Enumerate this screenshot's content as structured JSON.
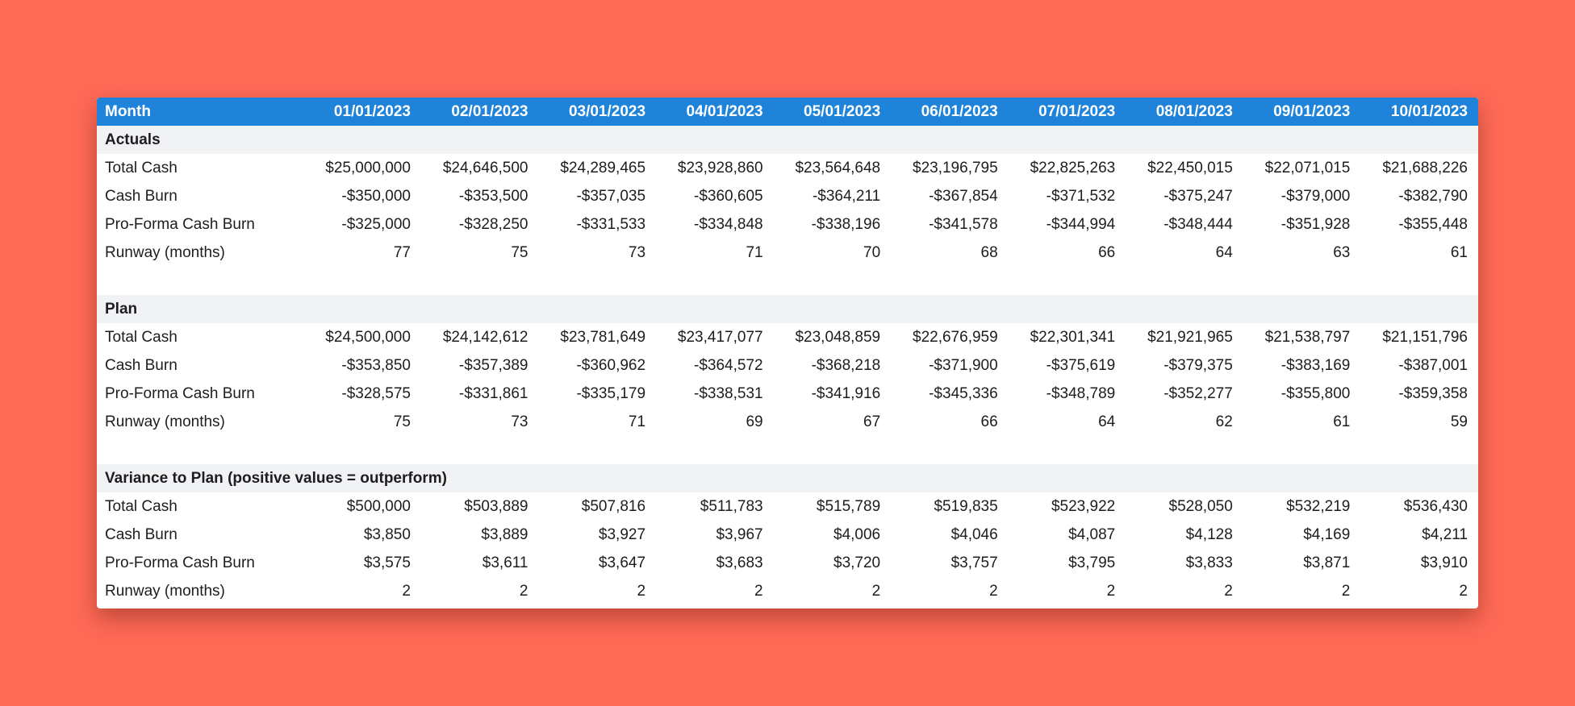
{
  "table": {
    "header": [
      "Month",
      "01/01/2023",
      "02/01/2023",
      "03/01/2023",
      "04/01/2023",
      "05/01/2023",
      "06/01/2023",
      "07/01/2023",
      "08/01/2023",
      "09/01/2023",
      "10/01/2023"
    ],
    "sections": [
      {
        "title": "Actuals",
        "rows": [
          {
            "label": "Total Cash",
            "values": [
              "$25,000,000",
              "$24,646,500",
              "$24,289,465",
              "$23,928,860",
              "$23,564,648",
              "$23,196,795",
              "$22,825,263",
              "$22,450,015",
              "$22,071,015",
              "$21,688,226"
            ]
          },
          {
            "label": "Cash Burn",
            "values": [
              "-$350,000",
              "-$353,500",
              "-$357,035",
              "-$360,605",
              "-$364,211",
              "-$367,854",
              "-$371,532",
              "-$375,247",
              "-$379,000",
              "-$382,790"
            ]
          },
          {
            "label": "Pro-Forma Cash Burn",
            "values": [
              "-$325,000",
              "-$328,250",
              "-$331,533",
              "-$334,848",
              "-$338,196",
              "-$341,578",
              "-$344,994",
              "-$348,444",
              "-$351,928",
              "-$355,448"
            ]
          },
          {
            "label": "Runway (months)",
            "values": [
              "77",
              "75",
              "73",
              "71",
              "70",
              "68",
              "66",
              "64",
              "63",
              "61"
            ]
          }
        ]
      },
      {
        "title": "Plan",
        "rows": [
          {
            "label": "Total Cash",
            "values": [
              "$24,500,000",
              "$24,142,612",
              "$23,781,649",
              "$23,417,077",
              "$23,048,859",
              "$22,676,959",
              "$22,301,341",
              "$21,921,965",
              "$21,538,797",
              "$21,151,796"
            ]
          },
          {
            "label": "Cash Burn",
            "values": [
              "-$353,850",
              "-$357,389",
              "-$360,962",
              "-$364,572",
              "-$368,218",
              "-$371,900",
              "-$375,619",
              "-$379,375",
              "-$383,169",
              "-$387,001"
            ]
          },
          {
            "label": "Pro-Forma Cash Burn",
            "values": [
              "-$328,575",
              "-$331,861",
              "-$335,179",
              "-$338,531",
              "-$341,916",
              "-$345,336",
              "-$348,789",
              "-$352,277",
              "-$355,800",
              "-$359,358"
            ]
          },
          {
            "label": "Runway (months)",
            "values": [
              "75",
              "73",
              "71",
              "69",
              "67",
              "66",
              "64",
              "62",
              "61",
              "59"
            ]
          }
        ]
      },
      {
        "title": "Variance to Plan (positive values = outperform)",
        "rows": [
          {
            "label": "Total Cash",
            "values": [
              "$500,000",
              "$503,889",
              "$507,816",
              "$511,783",
              "$515,789",
              "$519,835",
              "$523,922",
              "$528,050",
              "$532,219",
              "$536,430"
            ]
          },
          {
            "label": "Cash Burn",
            "values": [
              "$3,850",
              "$3,889",
              "$3,927",
              "$3,967",
              "$4,006",
              "$4,046",
              "$4,087",
              "$4,128",
              "$4,169",
              "$4,211"
            ]
          },
          {
            "label": "Pro-Forma Cash Burn",
            "values": [
              "$3,575",
              "$3,611",
              "$3,647",
              "$3,683",
              "$3,720",
              "$3,757",
              "$3,795",
              "$3,833",
              "$3,871",
              "$3,910"
            ]
          },
          {
            "label": "Runway (months)",
            "values": [
              "2",
              "2",
              "2",
              "2",
              "2",
              "2",
              "2",
              "2",
              "2",
              "2"
            ]
          }
        ]
      }
    ]
  }
}
